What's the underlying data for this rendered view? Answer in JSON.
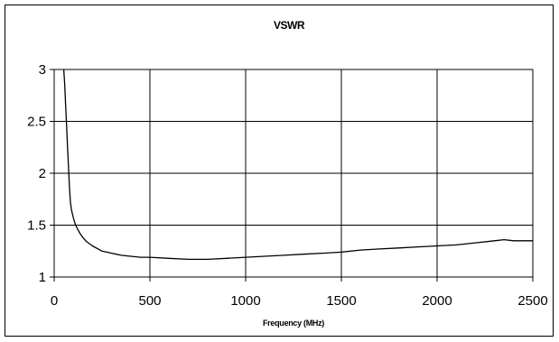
{
  "chart_data": {
    "type": "line",
    "title": "VSWR",
    "xlabel": "Frequency (MHz)",
    "ylabel": "",
    "xlim": [
      0,
      2500
    ],
    "ylim": [
      1,
      3
    ],
    "x_ticks": [
      0,
      500,
      1000,
      1500,
      2000,
      2500
    ],
    "x_tick_labels": [
      "0",
      "500",
      "1000",
      "1500",
      "2000",
      "2500"
    ],
    "y_ticks": [
      1,
      1.5,
      2,
      2.5,
      3
    ],
    "y_tick_labels": [
      "1",
      "1.5",
      "2",
      "2.5",
      "3"
    ],
    "grid": true,
    "legend": "none",
    "series": [
      {
        "x": [
          50,
          55,
          60,
          65,
          70,
          75,
          80,
          85,
          90,
          100,
          110,
          120,
          135,
          150,
          170,
          200,
          250,
          300,
          350,
          400,
          450,
          500,
          600,
          700,
          800,
          900,
          1000,
          1100,
          1200,
          1300,
          1400,
          1500,
          1600,
          1700,
          1800,
          1900,
          2000,
          2100,
          2200,
          2300,
          2350,
          2400,
          2500
        ],
        "y": [
          3.0,
          2.85,
          2.65,
          2.45,
          2.25,
          2.05,
          1.85,
          1.72,
          1.65,
          1.57,
          1.51,
          1.47,
          1.42,
          1.38,
          1.34,
          1.3,
          1.25,
          1.23,
          1.21,
          1.2,
          1.19,
          1.19,
          1.18,
          1.17,
          1.17,
          1.18,
          1.19,
          1.2,
          1.21,
          1.22,
          1.23,
          1.24,
          1.26,
          1.27,
          1.28,
          1.29,
          1.3,
          1.31,
          1.33,
          1.35,
          1.36,
          1.35,
          1.35
        ]
      }
    ],
    "colors": {
      "line": "#000000",
      "grid": "#000000",
      "frame": "#000000",
      "background": "#ffffff"
    }
  }
}
